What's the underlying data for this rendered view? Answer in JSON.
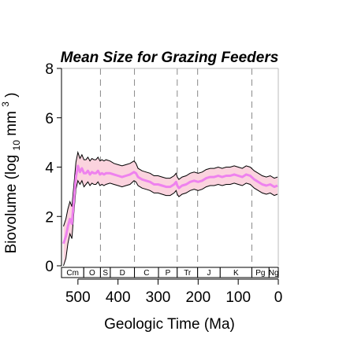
{
  "chart_data": {
    "type": "area",
    "title": "Mean Size for Grazing Feeders",
    "xlabel": "Geologic Time (Ma)",
    "ylabel": "Biovolume (log",
    "ylabel_sub": "10",
    "ylabel_unit": " mm",
    "ylabel_sup": "3",
    "ylabel_close": ")",
    "xlim": [
      541,
      0
    ],
    "ylim": [
      0,
      8
    ],
    "xticks": [
      500,
      400,
      300,
      200,
      100,
      0
    ],
    "yticks": [
      0,
      2,
      4,
      6,
      8
    ],
    "grid": false,
    "period_boundaries": [
      443.8,
      358.9,
      252.2,
      201.3,
      66
    ],
    "periods": [
      {
        "label": "Cm",
        "start": 541,
        "end": 485.4
      },
      {
        "label": "O",
        "start": 485.4,
        "end": 443.8
      },
      {
        "label": "S",
        "start": 443.8,
        "end": 419.2
      },
      {
        "label": "D",
        "start": 419.2,
        "end": 358.9
      },
      {
        "label": "C",
        "start": 358.9,
        "end": 298.9
      },
      {
        "label": "P",
        "start": 298.9,
        "end": 252.2
      },
      {
        "label": "Tr",
        "start": 252.2,
        "end": 201.3
      },
      {
        "label": "J",
        "start": 201.3,
        "end": 145
      },
      {
        "label": "K",
        "start": 145,
        "end": 66
      },
      {
        "label": "Pg",
        "start": 66,
        "end": 23
      },
      {
        "label": "Ng",
        "start": 23,
        "end": 0
      }
    ],
    "series": [
      {
        "color": "#ee82ee",
        "band_fill": "#fbd3de",
        "band_edge": "#000000",
        "x": [
          536,
          530,
          525,
          520,
          515,
          510,
          505,
          500,
          495,
          490,
          485,
          480,
          475,
          470,
          465,
          460,
          455,
          450,
          445,
          440,
          435,
          430,
          420,
          410,
          400,
          390,
          380,
          370,
          360,
          355,
          350,
          340,
          330,
          320,
          310,
          300,
          290,
          280,
          270,
          260,
          255,
          252,
          248,
          240,
          230,
          220,
          210,
          200,
          190,
          180,
          170,
          160,
          150,
          140,
          130,
          120,
          110,
          100,
          90,
          80,
          70,
          60,
          50,
          40,
          30,
          20,
          10,
          2
        ],
        "y": [
          0.9,
          1.2,
          1.6,
          1.9,
          1.7,
          2.7,
          3.6,
          4.05,
          3.8,
          3.95,
          3.75,
          3.75,
          3.85,
          3.7,
          3.8,
          3.75,
          3.75,
          3.85,
          3.7,
          3.75,
          3.7,
          3.75,
          3.75,
          3.7,
          3.65,
          3.6,
          3.65,
          3.7,
          3.8,
          3.75,
          3.6,
          3.5,
          3.45,
          3.4,
          3.3,
          3.3,
          3.25,
          3.2,
          3.2,
          3.3,
          3.4,
          3.25,
          3.15,
          3.25,
          3.3,
          3.4,
          3.45,
          3.4,
          3.45,
          3.55,
          3.6,
          3.6,
          3.65,
          3.6,
          3.65,
          3.65,
          3.7,
          3.65,
          3.6,
          3.7,
          3.65,
          3.5,
          3.4,
          3.3,
          3.25,
          3.3,
          3.2,
          3.25
        ],
        "lower": [
          0.0,
          0.3,
          0.9,
          1.3,
          1.1,
          2.2,
          3.1,
          3.45,
          3.3,
          3.45,
          3.2,
          3.3,
          3.4,
          3.25,
          3.35,
          3.3,
          3.3,
          3.4,
          3.25,
          3.3,
          3.25,
          3.3,
          3.35,
          3.3,
          3.25,
          3.2,
          3.25,
          3.3,
          3.45,
          3.4,
          3.25,
          3.15,
          3.1,
          3.05,
          2.95,
          2.95,
          2.9,
          2.85,
          2.85,
          2.95,
          3.05,
          2.9,
          2.8,
          2.9,
          2.95,
          3.05,
          3.1,
          3.05,
          3.1,
          3.2,
          3.25,
          3.25,
          3.3,
          3.25,
          3.3,
          3.3,
          3.35,
          3.3,
          3.25,
          3.35,
          3.3,
          3.15,
          3.05,
          2.95,
          2.9,
          2.95,
          2.85,
          2.9
        ],
        "upper": [
          1.6,
          1.9,
          2.3,
          2.6,
          2.4,
          3.3,
          4.2,
          4.6,
          4.35,
          4.5,
          4.3,
          4.3,
          4.4,
          4.25,
          4.35,
          4.3,
          4.3,
          4.4,
          4.25,
          4.3,
          4.25,
          4.3,
          4.25,
          4.15,
          4.1,
          4.05,
          4.1,
          4.15,
          4.25,
          4.15,
          3.95,
          3.85,
          3.8,
          3.75,
          3.65,
          3.65,
          3.6,
          3.55,
          3.55,
          3.65,
          3.75,
          3.6,
          3.5,
          3.6,
          3.65,
          3.75,
          3.8,
          3.75,
          3.8,
          3.9,
          3.95,
          3.95,
          4.0,
          3.95,
          4.0,
          4.0,
          4.05,
          4.0,
          3.95,
          4.05,
          4.0,
          3.85,
          3.75,
          3.65,
          3.6,
          3.65,
          3.55,
          3.6
        ]
      }
    ]
  }
}
